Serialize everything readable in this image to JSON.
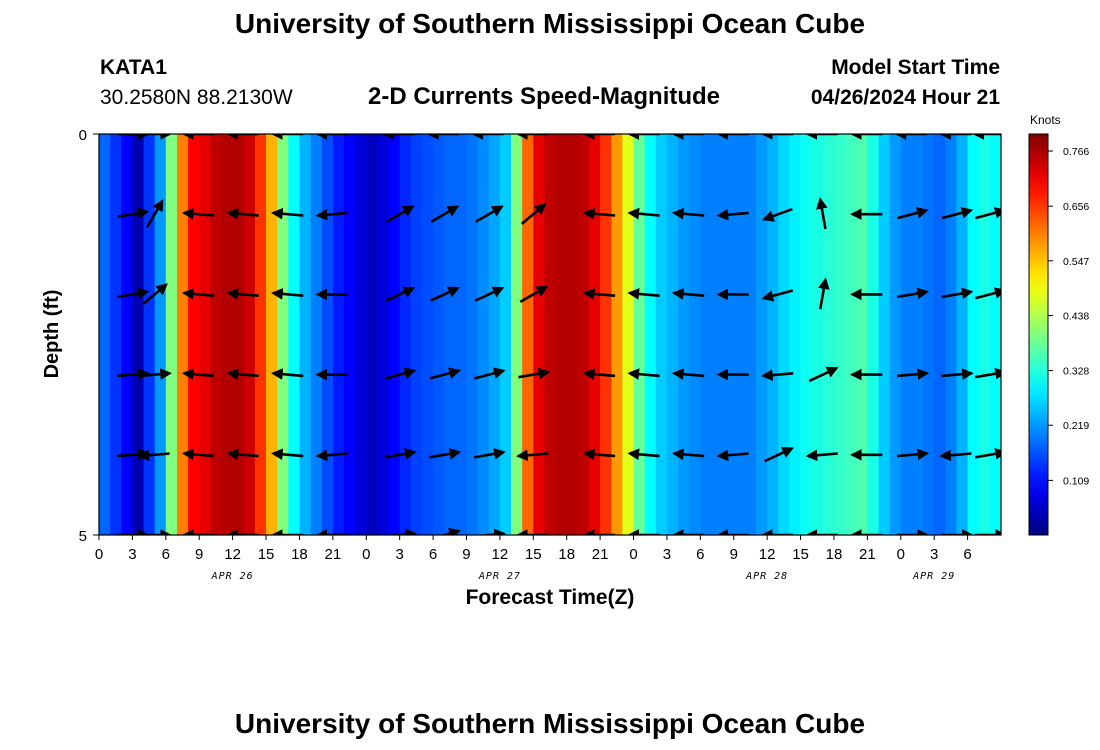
{
  "header": {
    "title": "University of Southern Mississippi Ocean Cube",
    "station": "KATA1",
    "coords": "30.2580N  88.2130W",
    "subtitle": "2-D Currents Speed-Magnitude",
    "model_start_label": "Model Start Time",
    "model_start_value": "04/26/2024 Hour 21",
    "footer_title": "University of Southern Mississippi Ocean Cube"
  },
  "chart_data": {
    "type": "heatmap",
    "title": "2-D Currents Speed-Magnitude",
    "xlabel": "Forecast Time(Z)",
    "ylabel": "Depth (ft)",
    "colorbar_label": "Knots",
    "colorbar_ticks": [
      "0.766",
      "0.656",
      "0.547",
      "0.438",
      "0.328",
      "0.219",
      "0.109"
    ],
    "colorbar_values": [
      0.766,
      0.656,
      0.547,
      0.438,
      0.328,
      0.219,
      0.109
    ],
    "speed_range": [
      0,
      0.8
    ],
    "x_range_hours": [
      0,
      81
    ],
    "y_range_ft": [
      0,
      5
    ],
    "y_ticks": [
      "0",
      "5"
    ],
    "x_tick_labels": [
      "0",
      "3",
      "6",
      "9",
      "12",
      "15",
      "18",
      "21",
      "0",
      "3",
      "6",
      "9",
      "12",
      "15",
      "18",
      "21",
      "0",
      "3",
      "6",
      "9",
      "12",
      "15",
      "18",
      "21",
      "0",
      "3",
      "6"
    ],
    "day_labels": [
      {
        "text": "APR 26",
        "hour": 12
      },
      {
        "text": "APR 27",
        "hour": 36
      },
      {
        "text": "APR 28",
        "hour": 60
      },
      {
        "text": "APR 29",
        "hour": 75
      }
    ],
    "speed_profile_knots": [
      0.18,
      0.14,
      0.1,
      0.04,
      0.14,
      0.22,
      0.4,
      0.6,
      0.7,
      0.72,
      0.75,
      0.76,
      0.76,
      0.74,
      0.66,
      0.56,
      0.4,
      0.3,
      0.24,
      0.2,
      0.16,
      0.12,
      0.1,
      0.07,
      0.05,
      0.07,
      0.1,
      0.13,
      0.15,
      0.16,
      0.17,
      0.18,
      0.18,
      0.19,
      0.21,
      0.23,
      0.26,
      0.4,
      0.62,
      0.72,
      0.75,
      0.76,
      0.76,
      0.75,
      0.72,
      0.66,
      0.58,
      0.48,
      0.38,
      0.3,
      0.26,
      0.24,
      0.22,
      0.21,
      0.2,
      0.2,
      0.2,
      0.2,
      0.2,
      0.22,
      0.24,
      0.27,
      0.29,
      0.31,
      0.32,
      0.33,
      0.34,
      0.35,
      0.36,
      0.32,
      0.26,
      0.22,
      0.2,
      0.2,
      0.19,
      0.18,
      0.2,
      0.24,
      0.3,
      0.32,
      0.3
    ],
    "vector_times_hours": [
      3,
      5,
      9,
      13,
      17,
      21,
      27,
      31,
      35,
      39,
      45,
      49,
      53,
      57,
      61,
      65,
      69,
      73,
      77,
      80
    ],
    "vector_rows_ft": [
      0,
      1,
      2,
      3,
      4,
      5
    ],
    "vector_angles_deg": [
      [
        0,
        0,
        180,
        180,
        180,
        180,
        180,
        180,
        180,
        180,
        180,
        180,
        180,
        180,
        180,
        180,
        180,
        180,
        180,
        180
      ],
      [
        10,
        60,
        175,
        175,
        175,
        185,
        30,
        30,
        30,
        40,
        175,
        175,
        175,
        185,
        200,
        100,
        180,
        15,
        15,
        15
      ],
      [
        10,
        40,
        175,
        175,
        175,
        180,
        25,
        25,
        25,
        30,
        175,
        175,
        175,
        180,
        195,
        80,
        180,
        10,
        10,
        15
      ],
      [
        5,
        5,
        175,
        175,
        175,
        180,
        15,
        15,
        15,
        10,
        175,
        175,
        175,
        180,
        185,
        25,
        180,
        5,
        5,
        10
      ],
      [
        5,
        185,
        175,
        175,
        175,
        185,
        10,
        10,
        10,
        185,
        175,
        175,
        175,
        185,
        25,
        185,
        180,
        5,
        185,
        10
      ],
      [
        0,
        0,
        180,
        180,
        180,
        180,
        5,
        15,
        5,
        180,
        180,
        180,
        180,
        180,
        180,
        180,
        180,
        0,
        0,
        0
      ]
    ]
  }
}
